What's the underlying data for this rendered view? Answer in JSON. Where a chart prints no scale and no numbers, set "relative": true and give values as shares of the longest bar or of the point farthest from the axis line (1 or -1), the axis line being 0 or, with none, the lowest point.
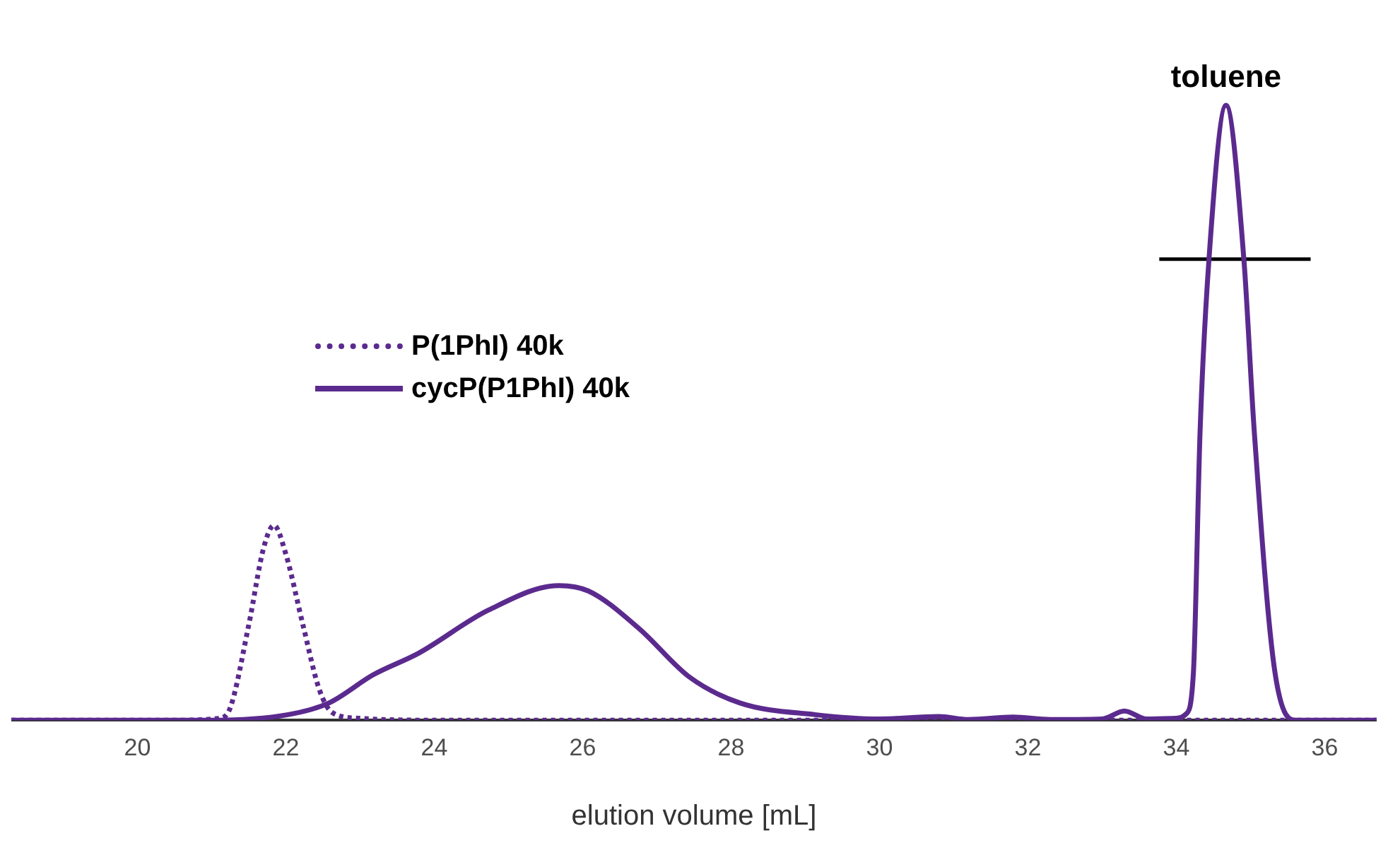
{
  "chart_data": {
    "type": "line",
    "relative": true,
    "xlabel": "elution volume [mL]",
    "xlim": [
      18.3,
      36.7
    ],
    "xticks": [
      20,
      22,
      24,
      26,
      28,
      30,
      32,
      34,
      36
    ],
    "grid": false,
    "legend": "top left",
    "annotations": [
      {
        "text": "toluene",
        "x": 34.67,
        "y": 1
      }
    ],
    "series": [
      {
        "name": "P(1PhI) 40k",
        "color": "#5b2a8e",
        "line_style": "dotted",
        "x": [
          18.3,
          20.5,
          21.1,
          21.25,
          21.5,
          21.7,
          21.84,
          22.0,
          22.23,
          22.45,
          22.63,
          23.0,
          24,
          26,
          28,
          30,
          32,
          34,
          36.7
        ],
        "values": [
          0,
          0,
          0.003,
          0.02,
          0.155,
          0.28,
          0.317,
          0.27,
          0.155,
          0.05,
          0.012,
          0.003,
          0,
          0,
          0,
          0,
          0,
          0,
          0
        ]
      },
      {
        "name": "cycP(P1PhI) 40k",
        "color": "#5b2a8e",
        "line_style": "solid",
        "x": [
          18.3,
          21,
          22.03,
          22.58,
          23.18,
          23.79,
          24.73,
          25.68,
          26.08,
          26.76,
          27.44,
          28.12,
          29.13,
          30.0,
          30.8,
          31.2,
          31.8,
          32.3,
          33.0,
          33.3,
          33.6,
          34.0,
          34.13,
          34.23,
          34.32,
          34.44,
          34.67,
          34.91,
          35.05,
          35.33,
          35.62,
          36.7
        ],
        "values": [
          0,
          0,
          0.009,
          0.028,
          0.074,
          0.109,
          0.179,
          0.219,
          0.21,
          0.149,
          0.07,
          0.028,
          0.009,
          0.002,
          0.006,
          0.001,
          0.005,
          0.001,
          0.002,
          0.015,
          0.002,
          0.003,
          0.01,
          0.077,
          0.47,
          0.75,
          1,
          0.75,
          0.47,
          0.077,
          0,
          0
        ]
      },
      {
        "type": "line",
        "color": "#000000",
        "line_style": "solid",
        "x": [
          33.77,
          35.81
        ],
        "values": [
          0.75,
          0.75
        ]
      }
    ]
  }
}
